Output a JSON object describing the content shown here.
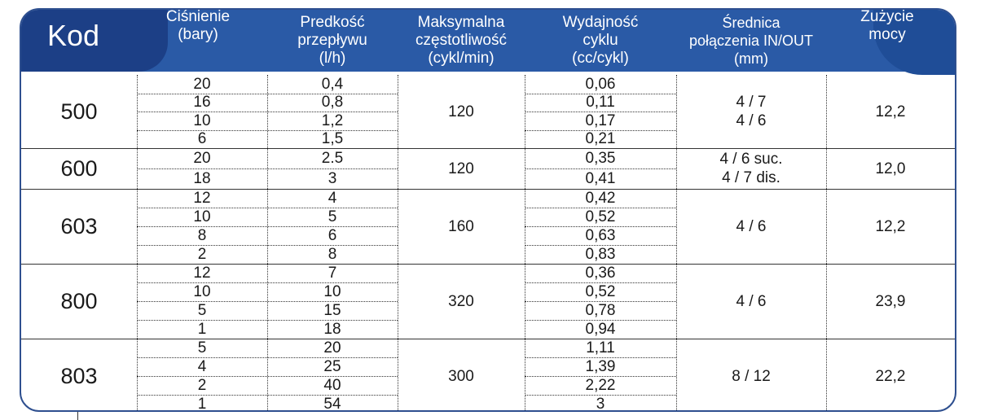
{
  "headers": {
    "kod": "Kod",
    "pressure": "Ciśnienie\n(bary)",
    "flow": "Predkość\nprzepływu\n(l/h)",
    "freq": "Maksymalna\nczęstotliwość\n(cykl/min)",
    "cycle": "Wydajność\ncyklu\n(cc/cykl)",
    "diameter": "Średnica\npołączenia IN/OUT\n(mm)",
    "power": "Zużycie\nmocy"
  },
  "groups": [
    {
      "code": "500",
      "pressure": [
        "20",
        "16",
        "10",
        "6"
      ],
      "flow": [
        "0,4",
        "0,8",
        "1,2",
        "1,5"
      ],
      "freq": "120",
      "cycle": [
        "0,06",
        "0,11",
        "0,17",
        "0,21"
      ],
      "diameter": "4 / 7\n4 / 6",
      "power": "12,2"
    },
    {
      "code": "600",
      "pressure": [
        "20",
        "18"
      ],
      "flow": [
        "2.5",
        "3"
      ],
      "freq": "120",
      "cycle": [
        "0,35",
        "0,41"
      ],
      "diameter": "4 / 6 suc.\n4 / 7 dis.",
      "power": "12,0"
    },
    {
      "code": "603",
      "pressure": [
        "12",
        "10",
        "8",
        "2"
      ],
      "flow": [
        "4",
        "5",
        "6",
        "8"
      ],
      "freq": "160",
      "cycle": [
        "0,42",
        "0,52",
        "0,63",
        "0,83"
      ],
      "diameter": "4 / 6",
      "power": "12,2"
    },
    {
      "code": "800",
      "pressure": [
        "12",
        "10",
        "5",
        "1"
      ],
      "flow": [
        "7",
        "10",
        "15",
        "18"
      ],
      "freq": "320",
      "cycle": [
        "0,36",
        "0,52",
        "0,78",
        "0,94"
      ],
      "diameter": "4 / 6",
      "power": "23,9"
    },
    {
      "code": "803",
      "pressure": [
        "5",
        "4",
        "2",
        "1"
      ],
      "flow": [
        "20",
        "25",
        "40",
        "54"
      ],
      "freq": "300",
      "cycle": [
        "1,11",
        "1,39",
        "2,22",
        "3"
      ],
      "diameter": "8 / 12",
      "power": "22,2"
    }
  ]
}
